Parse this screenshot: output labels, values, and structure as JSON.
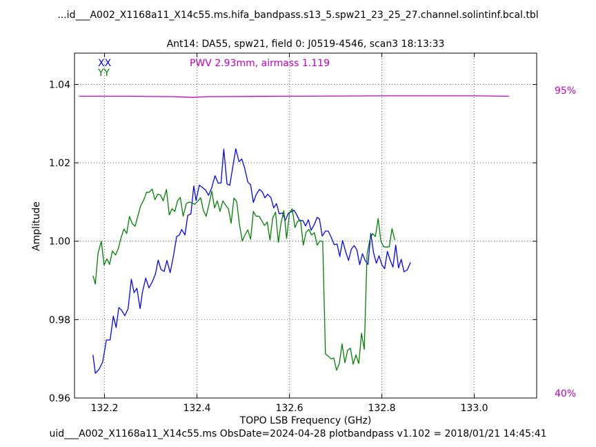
{
  "header": {
    "title": "...id___A002_X1168a11_X14c55.ms.hifa_bandpass.s13_5.spw21_23_25_27.channel.solintinf.bcal.tbl",
    "subtitle": "Ant14: DA55,  spw21,  field 0: J0519-4546,  scan3  18:13:33"
  },
  "footer": {
    "text": "uid___A002_X1168a11_X14c55.ms  ObsDate=2024-04-28   plotbandpass v1.102 = 2018/01/21 14:45:41"
  },
  "annotations": {
    "pwv": "PWV 2.93mm, airmass 1.119",
    "transmission_top": "95%",
    "transmission_bottom": "40%"
  },
  "colors": {
    "xx": "#0000ff",
    "yy": "#008000",
    "transmission": "#c000c0"
  },
  "chart_data": {
    "type": "line",
    "xlabel": "TOPO LSB Frequency (GHz)",
    "ylabel": "Amplitude",
    "xlim": [
      132.135,
      133.135
    ],
    "ylim": [
      0.96,
      1.048
    ],
    "xticks": [
      132.2,
      132.4,
      132.6,
      132.8,
      133.0
    ],
    "xtick_labels": [
      "132.2",
      "132.4",
      "132.6",
      "132.8",
      "133.0"
    ],
    "yticks": [
      0.96,
      0.98,
      1.0,
      1.02,
      1.04
    ],
    "ytick_labels": [
      "0.96",
      "0.98",
      "1.00",
      "1.02",
      "1.04"
    ],
    "grid": true,
    "legend": [
      "XX",
      "YY"
    ],
    "legend_position": "top-left",
    "transmission_scale": {
      "bottom_label": "40%",
      "top_label": "95%"
    },
    "transmission_curve": [
      [
        132.145,
        1.037
      ],
      [
        132.25,
        1.037
      ],
      [
        132.35,
        1.0369
      ],
      [
        132.39,
        1.0367
      ],
      [
        132.42,
        1.0369
      ],
      [
        132.6,
        1.037
      ],
      [
        132.8,
        1.0371
      ],
      [
        133.0,
        1.0371
      ],
      [
        133.075,
        1.037
      ]
    ],
    "series": [
      {
        "name": "XX",
        "points": [
          [
            132.175,
            0.971
          ],
          [
            132.18,
            0.9663
          ],
          [
            132.188,
            0.9673
          ],
          [
            132.196,
            0.9692
          ],
          [
            132.204,
            0.9748
          ],
          [
            132.212,
            0.9748
          ],
          [
            132.219,
            0.9809
          ],
          [
            132.225,
            0.978
          ],
          [
            132.231,
            0.9831
          ],
          [
            132.237,
            0.9824
          ],
          [
            132.244,
            0.981
          ],
          [
            132.251,
            0.9828
          ],
          [
            132.258,
            0.9903
          ],
          [
            132.264,
            0.9869
          ],
          [
            132.27,
            0.988
          ],
          [
            132.277,
            0.9828
          ],
          [
            132.282,
            0.987
          ],
          [
            132.289,
            0.9906
          ],
          [
            132.296,
            0.9881
          ],
          [
            132.303,
            0.9896
          ],
          [
            132.31,
            0.9916
          ],
          [
            132.316,
            0.9952
          ],
          [
            132.322,
            0.9928
          ],
          [
            132.329,
            0.9923
          ],
          [
            132.335,
            0.9951
          ],
          [
            132.342,
            0.992
          ],
          [
            132.349,
            0.9962
          ],
          [
            132.356,
            1.0012
          ],
          [
            132.362,
            1.0016
          ],
          [
            132.367,
            1.003
          ],
          [
            132.374,
            1.0016
          ],
          [
            132.38,
            1.0066
          ],
          [
            132.387,
            1.007
          ],
          [
            132.393,
            1.0141
          ],
          [
            132.398,
            1.0104
          ],
          [
            132.405,
            1.0143
          ],
          [
            132.412,
            1.0137
          ],
          [
            132.419,
            1.013
          ],
          [
            132.425,
            1.0117
          ],
          [
            132.432,
            1.0137
          ],
          [
            132.439,
            1.0167
          ],
          [
            132.446,
            1.0148
          ],
          [
            132.452,
            1.0149
          ],
          [
            132.458,
            1.0235
          ],
          [
            132.465,
            1.0146
          ],
          [
            132.471,
            1.0143
          ],
          [
            132.478,
            1.0193
          ],
          [
            132.484,
            1.0236
          ],
          [
            132.491,
            1.0203
          ],
          [
            132.497,
            1.021
          ],
          [
            132.503,
            1.0187
          ],
          [
            132.51,
            1.0151
          ],
          [
            132.516,
            1.0144
          ],
          [
            132.522,
            1.0099
          ],
          [
            132.528,
            1.0119
          ],
          [
            132.535,
            1.0132
          ],
          [
            132.541,
            1.0127
          ],
          [
            132.547,
            1.0111
          ],
          [
            132.553,
            1.012
          ],
          [
            132.56,
            1.0111
          ],
          [
            132.566,
            1.0085
          ],
          [
            132.572,
            1.0096
          ],
          [
            132.578,
            1.007
          ],
          [
            132.585,
            1.0072
          ],
          [
            132.591,
            1.0053
          ],
          [
            132.598,
            1.0072
          ],
          [
            132.604,
            1.0075
          ],
          [
            132.61,
            1.0079
          ],
          [
            132.616,
            1.0067
          ],
          [
            132.622,
            1.0052
          ],
          [
            132.629,
            1.0053
          ],
          [
            132.635,
            1.0039
          ],
          [
            132.641,
            1.0055
          ],
          [
            132.647,
            1.0028
          ],
          [
            132.654,
            1.0043
          ],
          [
            132.66,
            1.0061
          ],
          [
            132.665,
            1.0057
          ],
          [
            132.671,
            1.0013
          ],
          [
            132.678,
            1.0026
          ],
          [
            132.684,
            1.0026
          ],
          [
            132.69,
            1.0011
          ],
          [
            132.697,
            0.9991
          ],
          [
            132.703,
            0.9993
          ],
          [
            132.709,
            0.9961
          ],
          [
            132.715,
            1.0002
          ],
          [
            132.722,
            0.9972
          ],
          [
            132.728,
            0.9951
          ],
          [
            132.734,
            0.998
          ],
          [
            132.74,
            0.9989
          ],
          [
            132.746,
            0.9978
          ],
          [
            132.752,
            0.994
          ],
          [
            132.758,
            0.9968
          ],
          [
            132.764,
            0.9951
          ],
          [
            132.77,
            0.9941
          ],
          [
            132.776,
            1.002
          ],
          [
            132.782,
            0.9971
          ],
          [
            132.788,
            0.9944
          ],
          [
            132.794,
            0.9963
          ],
          [
            132.8,
            0.994
          ],
          [
            132.806,
            0.993
          ],
          [
            132.812,
            0.9974
          ],
          [
            132.818,
            0.9952
          ],
          [
            132.824,
            0.9934
          ],
          [
            132.83,
            0.999
          ],
          [
            132.836,
            0.9932
          ],
          [
            132.842,
            0.9954
          ],
          [
            132.848,
            0.9922
          ],
          [
            132.855,
            0.9927
          ],
          [
            132.862,
            0.9946
          ]
        ]
      },
      {
        "name": "YY",
        "points": [
          [
            132.175,
            0.9912
          ],
          [
            132.18,
            0.9891
          ],
          [
            132.186,
            0.997
          ],
          [
            132.193,
            1.0
          ],
          [
            132.199,
            0.9939
          ],
          [
            132.205,
            0.9955
          ],
          [
            132.211,
            0.9941
          ],
          [
            132.217,
            0.9975
          ],
          [
            132.224,
            0.9965
          ],
          [
            132.23,
            0.9982
          ],
          [
            132.236,
            1.001
          ],
          [
            132.242,
            1.0031
          ],
          [
            132.248,
            1.002
          ],
          [
            132.254,
            1.0063
          ],
          [
            132.26,
            1.0045
          ],
          [
            132.266,
            1.0038
          ],
          [
            132.272,
            1.0064
          ],
          [
            132.278,
            1.009
          ],
          [
            132.285,
            1.0106
          ],
          [
            132.291,
            1.0125
          ],
          [
            132.297,
            1.0125
          ],
          [
            132.303,
            1.0133
          ],
          [
            132.309,
            1.0106
          ],
          [
            132.315,
            1.012
          ],
          [
            132.321,
            1.0118
          ],
          [
            132.327,
            1.0103
          ],
          [
            132.334,
            1.0132
          ],
          [
            132.34,
            1.0067
          ],
          [
            132.346,
            1.0083
          ],
          [
            132.352,
            1.0076
          ],
          [
            132.358,
            1.0103
          ],
          [
            132.364,
            1.0112
          ],
          [
            132.37,
            1.0064
          ],
          [
            132.377,
            1.0096
          ],
          [
            132.383,
            1.01
          ],
          [
            132.389,
            1.0098
          ],
          [
            132.395,
            1.0094
          ],
          [
            132.402,
            1.0103
          ],
          [
            132.408,
            1.0111
          ],
          [
            132.414,
            1.0078
          ],
          [
            132.42,
            1.0064
          ],
          [
            132.426,
            1.0094
          ],
          [
            132.432,
            1.0128
          ],
          [
            132.438,
            1.0085
          ],
          [
            132.444,
            1.0103
          ],
          [
            132.45,
            1.0076
          ],
          [
            132.456,
            1.0103
          ],
          [
            132.462,
            1.0092
          ],
          [
            132.468,
            1.0083
          ],
          [
            132.474,
            1.0046
          ],
          [
            132.48,
            1.011
          ],
          [
            132.486,
            1.0101
          ],
          [
            132.492,
            1.0042
          ],
          [
            132.498,
            1.0001
          ],
          [
            132.504,
            1.0016
          ],
          [
            132.51,
            1.0029
          ],
          [
            132.516,
            1.0005
          ],
          [
            132.522,
            1.0076
          ],
          [
            132.528,
            1.0064
          ],
          [
            132.534,
            1.0064
          ],
          [
            132.54,
            1.0053
          ],
          [
            132.546,
            1.004
          ],
          [
            132.552,
            1.0049
          ],
          [
            132.558,
            1.0003
          ],
          [
            132.564,
            1.006
          ],
          [
            132.57,
            1.0074
          ],
          [
            132.576,
            0.9997
          ],
          [
            132.582,
            1.0047
          ],
          [
            132.588,
            1.0078
          ],
          [
            132.594,
            1.0007
          ],
          [
            132.6,
            1.0072
          ],
          [
            132.606,
            1.0083
          ],
          [
            132.612,
            1.0035
          ],
          [
            132.618,
            1.0051
          ],
          [
            132.624,
            1.0054
          ],
          [
            132.63,
            0.999
          ],
          [
            132.636,
            1.0023
          ],
          [
            132.642,
            1.003
          ],
          [
            132.648,
            1.0016
          ],
          [
            132.654,
            1.0022
          ],
          [
            132.66,
            0.999
          ],
          [
            132.666,
            1.0001
          ],
          [
            132.672,
            0.9999
          ],
          [
            132.678,
            0.9712
          ],
          [
            132.684,
            0.9707
          ],
          [
            132.69,
            0.97
          ],
          [
            132.696,
            0.9702
          ],
          [
            132.702,
            0.9671
          ],
          [
            132.708,
            0.9688
          ],
          [
            132.714,
            0.9738
          ],
          [
            132.72,
            0.969
          ],
          [
            132.726,
            0.9722
          ],
          [
            132.732,
            0.9727
          ],
          [
            132.738,
            0.9686
          ],
          [
            132.744,
            0.971
          ],
          [
            132.75,
            0.9688
          ],
          [
            132.756,
            0.9765
          ],
          [
            132.762,
            0.9724
          ],
          [
            132.768,
            0.9966
          ],
          [
            132.774,
            1.0003
          ],
          [
            132.78,
            1.002
          ],
          [
            132.786,
            1.0012
          ],
          [
            132.792,
            1.0058
          ],
          [
            132.798,
            1.0
          ],
          [
            132.804,
            0.9986
          ],
          [
            132.81,
            0.9985
          ],
          [
            132.816,
            0.9986
          ],
          [
            132.822,
            1.0032
          ],
          [
            132.828,
            1.0003
          ]
        ]
      }
    ]
  }
}
